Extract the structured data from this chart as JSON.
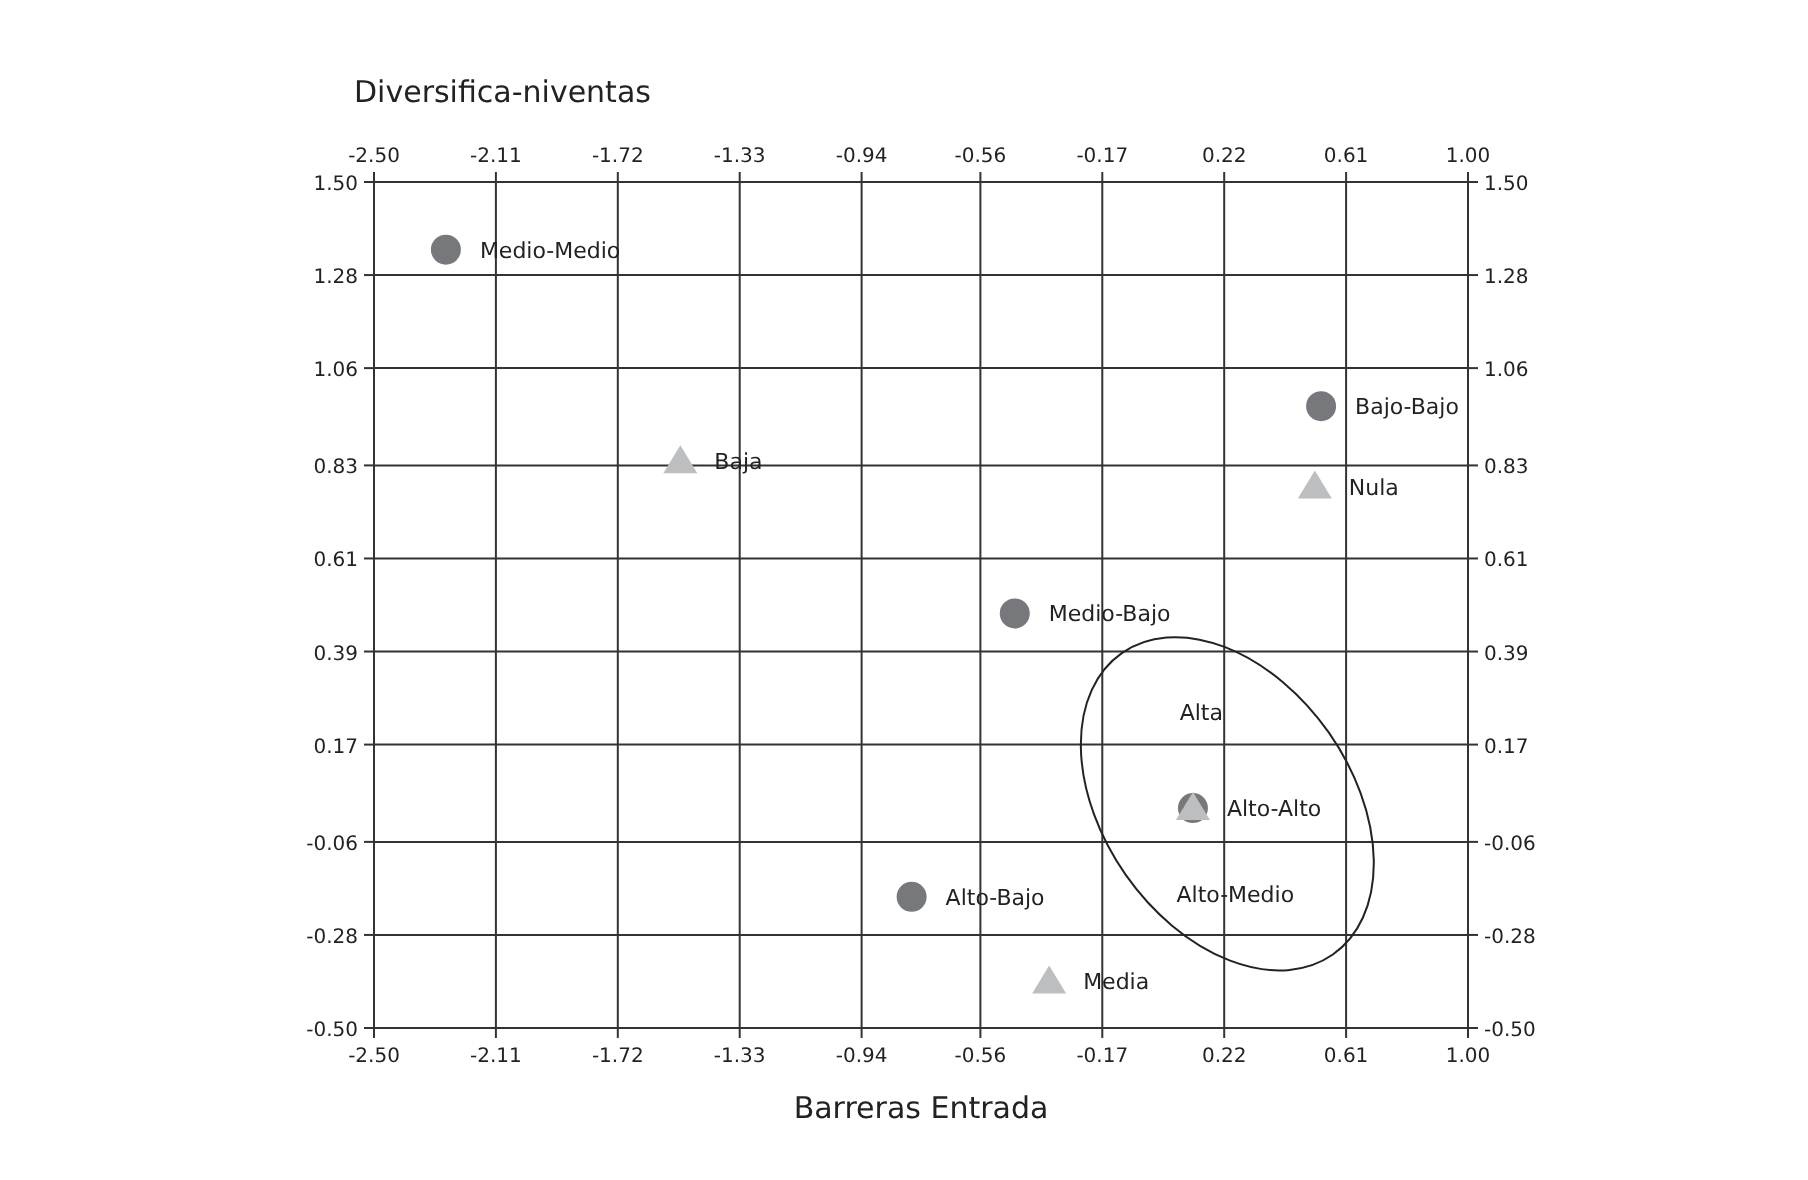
{
  "chart_data": {
    "type": "scatter",
    "ylabel": "Diversifica-niventas",
    "xlabel": "Barreras Entrada",
    "xlim": [
      -2.5,
      1.0
    ],
    "xticks": [
      {
        "value": -2.5,
        "label": "-2.50"
      },
      -2.11,
      -1.72,
      -1.33,
      -0.94,
      -0.56,
      -0.17,
      0.22,
      0.61,
      {
        "value": 1.0,
        "label": "1.00"
      }
    ],
    "x2lim": [
      -2.5,
      1.0
    ],
    "x2ticks": [
      {
        "value": -2.5,
        "label": "-2.50"
      },
      -2.11,
      -1.72,
      -1.33,
      -0.94,
      -0.56,
      -0.17,
      0.22,
      0.61,
      {
        "value": 1.0,
        "label": "1.00"
      }
    ],
    "ylim": [
      -0.5,
      1.5
    ],
    "yticks": [
      {
        "value": -0.5,
        "label": "-0.50"
      },
      -0.28,
      -0.06,
      0.17,
      0.39,
      0.61,
      0.83,
      1.06,
      1.28,
      {
        "value": 1.5,
        "label": "1.50"
      }
    ],
    "y2lim": [
      -0.5,
      1.5
    ],
    "y2ticks": [
      {
        "value": -0.5,
        "label": "-0.50"
      },
      -0.28,
      -0.06,
      0.17,
      0.39,
      0.61,
      0.83,
      1.06,
      1.28,
      {
        "value": 1.5,
        "label": "1.50"
      }
    ],
    "grid": true,
    "series": [
      {
        "color": "#77787b",
        "marker": "circle",
        "x": [
          -2.27,
          0.53,
          -0.45,
          0.12,
          -0.78
        ],
        "values": [
          1.34,
          0.97,
          0.48,
          0.02,
          -0.19
        ]
      },
      {
        "color": "#bcbec0",
        "marker": "triangle",
        "x": [
          -1.52,
          0.51,
          0.12,
          -0.34
        ],
        "values": [
          0.84,
          0.78,
          0.02,
          -0.39
        ]
      }
    ],
    "annotations": [
      {
        "text": "Medio-Medio",
        "x": -2.27,
        "y": 1.34
      },
      {
        "text": "Bajo-Bajo",
        "x": 0.53,
        "y": 0.97
      },
      {
        "text": "Baja",
        "x": -1.52,
        "y": 0.84
      },
      {
        "text": "Nula",
        "x": 0.51,
        "y": 0.78
      },
      {
        "text": "Medio-Bajo",
        "x": -0.45,
        "y": 0.48
      },
      {
        "text": "Alto-Alto",
        "x": 0.12,
        "y": 0.02
      },
      "Alta",
      "Alto-Medio",
      {
        "text": "Alto-Bajo",
        "x": -0.78,
        "y": -0.19
      },
      {
        "text": "Media",
        "x": -0.34,
        "y": -0.39
      }
    ]
  }
}
